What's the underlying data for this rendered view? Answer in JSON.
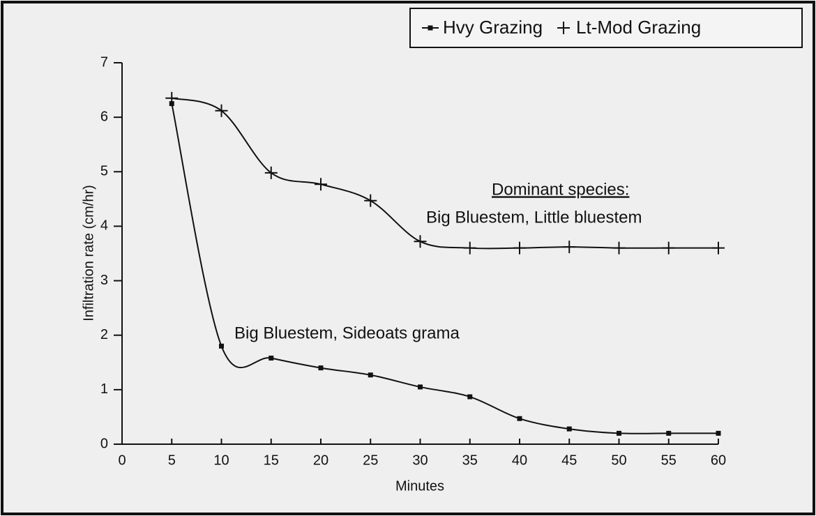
{
  "chart_data": {
    "type": "line",
    "x_label": "Minutes",
    "y_label": "Infiltration rate (cm/hr)",
    "x": [
      5,
      10,
      15,
      20,
      25,
      30,
      35,
      40,
      45,
      50,
      55,
      60
    ],
    "series": [
      {
        "name": "Hvy Grazing",
        "color": "#111111",
        "marker": "square",
        "values": [
          6.25,
          1.8,
          1.58,
          1.4,
          1.27,
          1.05,
          0.87,
          0.47,
          0.28,
          0.2,
          0.2,
          0.2
        ]
      },
      {
        "name": "Lt-Mod Grazing",
        "color": "#111111",
        "marker": "plus",
        "values": [
          6.35,
          6.12,
          4.98,
          4.77,
          4.47,
          3.72,
          3.6,
          3.6,
          3.62,
          3.6,
          3.6,
          3.6
        ]
      }
    ],
    "annotations": [
      "Dominant species:",
      "Big Bluestem, Little bluestem",
      "Big Bluestem, Sideoats grama"
    ],
    "xlim": [
      0,
      60
    ],
    "xticks": [
      0,
      5,
      10,
      15,
      20,
      25,
      30,
      35,
      40,
      45,
      50,
      55,
      60
    ],
    "ylim": [
      0,
      7
    ],
    "yticks": [
      0,
      1,
      2,
      3,
      4,
      5,
      6,
      7
    ],
    "grid": false,
    "legend": "top-right"
  }
}
